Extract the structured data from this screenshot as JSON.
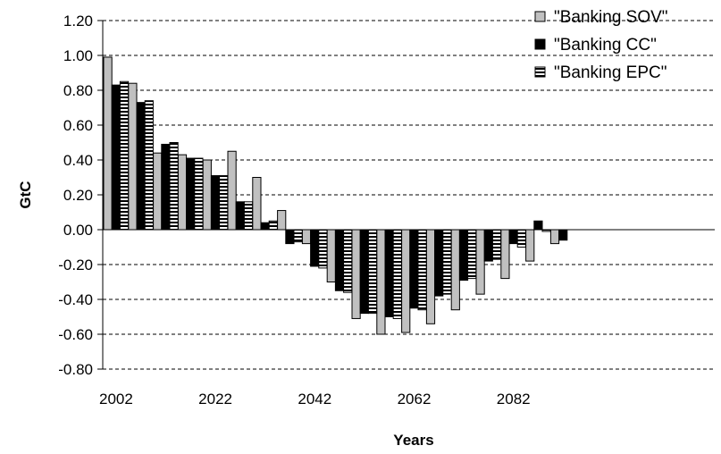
{
  "chart_data": {
    "type": "bar",
    "title": "",
    "xlabel": "Years",
    "ylabel": "GtC",
    "ylim": [
      -0.8,
      1.2
    ],
    "y_ticks": [
      1.2,
      1.0,
      0.8,
      0.6,
      0.4,
      0.2,
      0.0,
      -0.2,
      -0.4,
      -0.6,
      -0.8
    ],
    "y_tick_labels": [
      "1.20",
      "1.00",
      "0.80",
      "0.60",
      "0.40",
      "0.20",
      "0.00",
      "-0.20",
      "-0.40",
      "-0.60",
      "-0.80"
    ],
    "categories": [
      2002,
      2007,
      2012,
      2017,
      2022,
      2027,
      2032,
      2037,
      2042,
      2047,
      2052,
      2057,
      2062,
      2067,
      2072,
      2077,
      2082,
      2087,
      2092
    ],
    "x_tick_labels": [
      "2002",
      "2022",
      "2042",
      "2062",
      "2082"
    ],
    "x_tick_label_categories": [
      2002,
      2022,
      2042,
      2062,
      2082
    ],
    "grid": "horizontal-dashed",
    "legend_position": "top-right",
    "series": [
      {
        "name": "\"Banking SOV\"",
        "color": "#c0c0c0",
        "pattern": "solid",
        "values": [
          0.99,
          0.84,
          0.44,
          0.43,
          0.4,
          0.45,
          0.3,
          0.11,
          -0.08,
          -0.3,
          -0.51,
          -0.6,
          -0.59,
          -0.54,
          -0.46,
          -0.37,
          -0.28,
          -0.18,
          -0.08
        ]
      },
      {
        "name": "\"Banking CC\"",
        "color": "#000000",
        "pattern": "solid",
        "values": [
          0.83,
          0.73,
          0.49,
          0.41,
          0.31,
          0.16,
          0.04,
          -0.08,
          -0.21,
          -0.35,
          -0.48,
          -0.5,
          -0.45,
          -0.38,
          -0.29,
          -0.18,
          -0.08,
          0.05,
          -0.06
        ]
      },
      {
        "name": "\"Banking EPC\"",
        "color": "#ffffff",
        "pattern": "horizontal-stripes",
        "values": [
          0.85,
          0.74,
          0.5,
          0.41,
          0.31,
          0.16,
          0.05,
          -0.07,
          -0.22,
          -0.36,
          -0.48,
          -0.51,
          -0.46,
          -0.37,
          -0.28,
          -0.17,
          -0.1,
          -0.01,
          null
        ]
      }
    ]
  }
}
